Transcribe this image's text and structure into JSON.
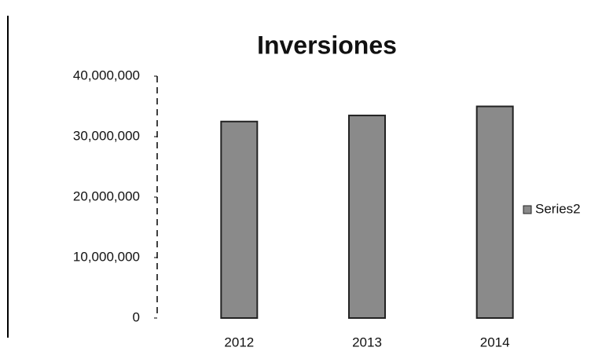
{
  "chart_data": {
    "type": "bar",
    "title": "Inversiones",
    "categories": [
      "2012",
      "2013",
      "2014"
    ],
    "series": [
      {
        "name": "Series2",
        "color": "#8a8a8a",
        "values": [
          32500000,
          33500000,
          35000000
        ]
      }
    ],
    "ylim": [
      0,
      40000000
    ],
    "yticks": [
      0,
      {
        "value": 10000000,
        "label": "10,000,000"
      },
      {
        "value": 20000000,
        "label": "20,000,000"
      },
      {
        "value": 30000000,
        "label": "30,000,000"
      },
      {
        "value": 40000000,
        "label": "40,000,000"
      }
    ],
    "legend": "right"
  }
}
